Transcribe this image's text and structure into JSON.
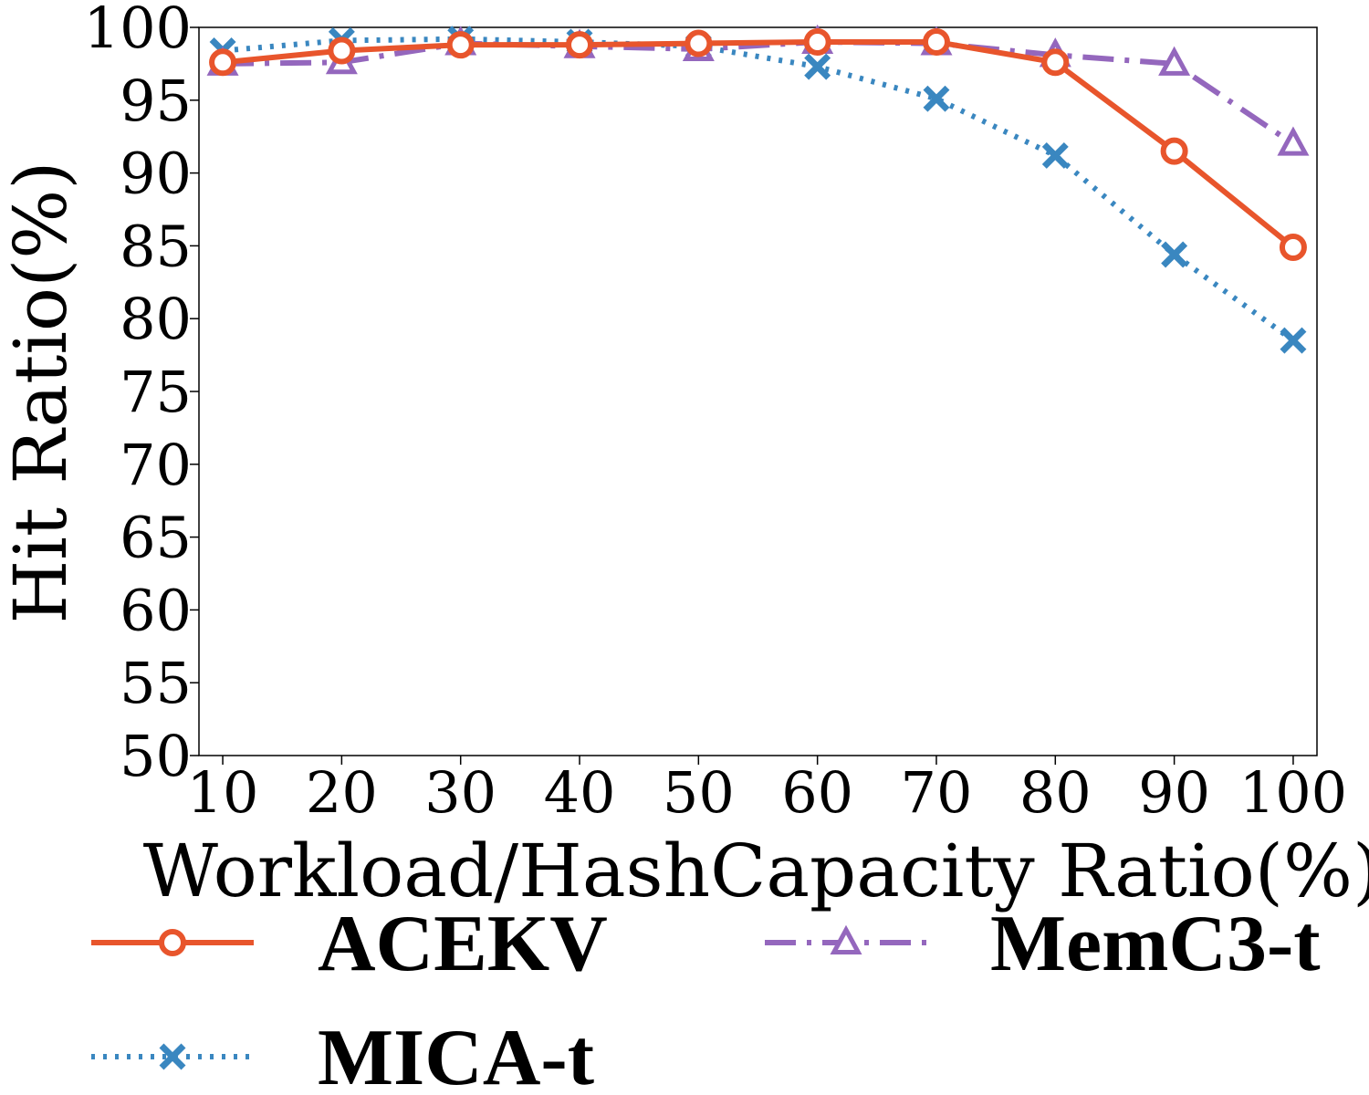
{
  "chart_data": {
    "type": "line",
    "title": "",
    "xlabel": "Workload/HashCapacity Ratio(%)",
    "ylabel": "Hit Ratio(%)",
    "x": [
      10,
      20,
      30,
      40,
      50,
      60,
      70,
      80,
      90,
      100
    ],
    "x_tick_labels": [
      "10",
      "20",
      "30",
      "40",
      "50",
      "60",
      "70",
      "80",
      "90",
      "100"
    ],
    "y_ticks": [
      50,
      55,
      60,
      65,
      70,
      75,
      80,
      85,
      90,
      95,
      100
    ],
    "y_tick_labels": [
      "50",
      "55",
      "60",
      "65",
      "70",
      "75",
      "80",
      "85",
      "90",
      "95",
      "100"
    ],
    "xlim": [
      8,
      102
    ],
    "ylim": [
      50,
      100
    ],
    "grid": false,
    "legend_position": "bottom",
    "series": [
      {
        "name": "ACEKV",
        "color": "#e8552c",
        "line_style": "solid",
        "marker": "circle",
        "values": [
          97.6,
          98.4,
          98.8,
          98.8,
          98.9,
          99.0,
          99.0,
          97.6,
          91.5,
          84.9
        ]
      },
      {
        "name": "MICA-t",
        "color": "#3a87c0",
        "line_style": "dotted",
        "marker": "x",
        "values": [
          98.4,
          99.1,
          99.2,
          99.0,
          98.7,
          97.3,
          95.1,
          91.2,
          84.4,
          78.5
        ]
      },
      {
        "name": "MemC3-t",
        "color": "#9467bd",
        "line_style": "dashdot",
        "marker": "triangle",
        "values": [
          97.5,
          97.6,
          98.9,
          98.7,
          98.5,
          99.0,
          98.9,
          98.1,
          97.5,
          92.0
        ]
      }
    ]
  }
}
